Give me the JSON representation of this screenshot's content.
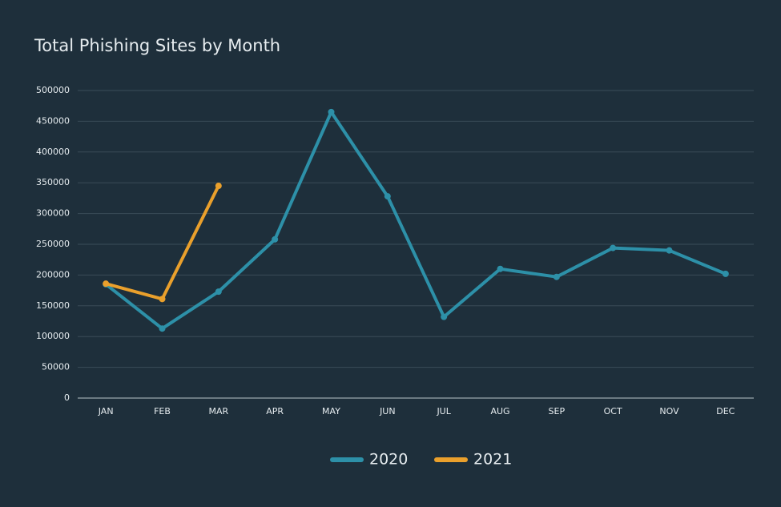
{
  "chart_data": {
    "type": "line",
    "title": "Total Phishing Sites by Month",
    "categories": [
      "JAN",
      "FEB",
      "MAR",
      "APR",
      "MAY",
      "JUN",
      "JUL",
      "AUG",
      "SEP",
      "OCT",
      "NOV",
      "DEC"
    ],
    "series": [
      {
        "name": "2020",
        "color": "#2d90a8",
        "values": [
          185000,
          113000,
          173000,
          258000,
          465000,
          328000,
          132000,
          210000,
          197000,
          244000,
          240000,
          202000
        ]
      },
      {
        "name": "2021",
        "color": "#eaa02c",
        "values": [
          186000,
          161000,
          345000,
          null,
          null,
          null,
          null,
          null,
          null,
          null,
          null,
          null
        ]
      }
    ],
    "ylim": [
      0,
      500000
    ],
    "yticks": [
      0,
      50000,
      100000,
      150000,
      200000,
      250000,
      300000,
      350000,
      400000,
      450000,
      500000
    ],
    "grid": true,
    "legend": "bottom"
  }
}
